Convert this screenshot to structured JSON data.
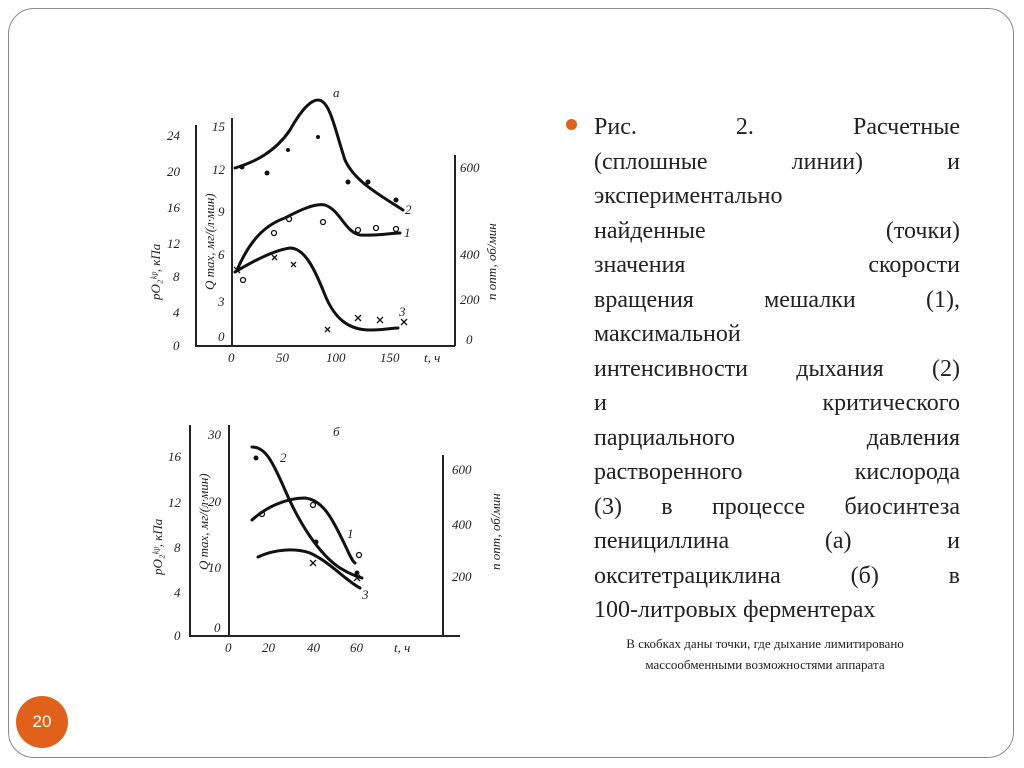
{
  "slide": {
    "page_number": "20",
    "accent_color": "#e0621a",
    "caption_lines": [
      "Рис. 2. Расчетные",
      "(сплошные линии) и",
      "экспериментально",
      "найденные (точки)",
      "значения скорости",
      "вращения мешалки (1),",
      "максимальной",
      "интенсивности дыхания (2)",
      "и критического",
      "парциального давления",
      "растворенного кислорода",
      "(3) в процессе биосинтеза",
      "пенициллина (а) и",
      "окситетрациклина (б) в",
      "100-литровых ферментерах"
    ],
    "note_lines": [
      "В скобках даны точки, где дыхание лимитировано",
      "массообменными возможностями аппарата"
    ]
  },
  "figure": {
    "a": {
      "panel_label": "а",
      "left_axis_label": "pO₂ᵏᵖ, кПа",
      "left_ticks": [
        "24",
        "20",
        "16",
        "12",
        "8",
        "4",
        "0"
      ],
      "q_axis_label": "Q max, мг/(л·мин)",
      "q_ticks": [
        "15",
        "12",
        "9",
        "6",
        "3",
        "0"
      ],
      "right_axis_label": "n опт, об/мин",
      "right_ticks": [
        "600",
        "400",
        "200",
        "0"
      ],
      "x_ticks": [
        "0",
        "50",
        "100",
        "150"
      ],
      "x_label": "t, ч",
      "curve_labels": [
        "1",
        "2",
        "3"
      ]
    },
    "b": {
      "panel_label": "б",
      "left_axis_label": "pO₂ᵏᵖ, кПа",
      "left_ticks": [
        "16",
        "12",
        "8",
        "4",
        "0"
      ],
      "q_axis_label": "Q max, мг/(л·мин)",
      "q_ticks": [
        "30",
        "20",
        "10",
        "0"
      ],
      "right_axis_label": "n опт, об/мин",
      "right_ticks": [
        "600",
        "400",
        "200"
      ],
      "x_ticks": [
        "0",
        "20",
        "40",
        "60"
      ],
      "x_label": "t, ч",
      "curve_labels": [
        "1",
        "2",
        "3"
      ]
    }
  }
}
